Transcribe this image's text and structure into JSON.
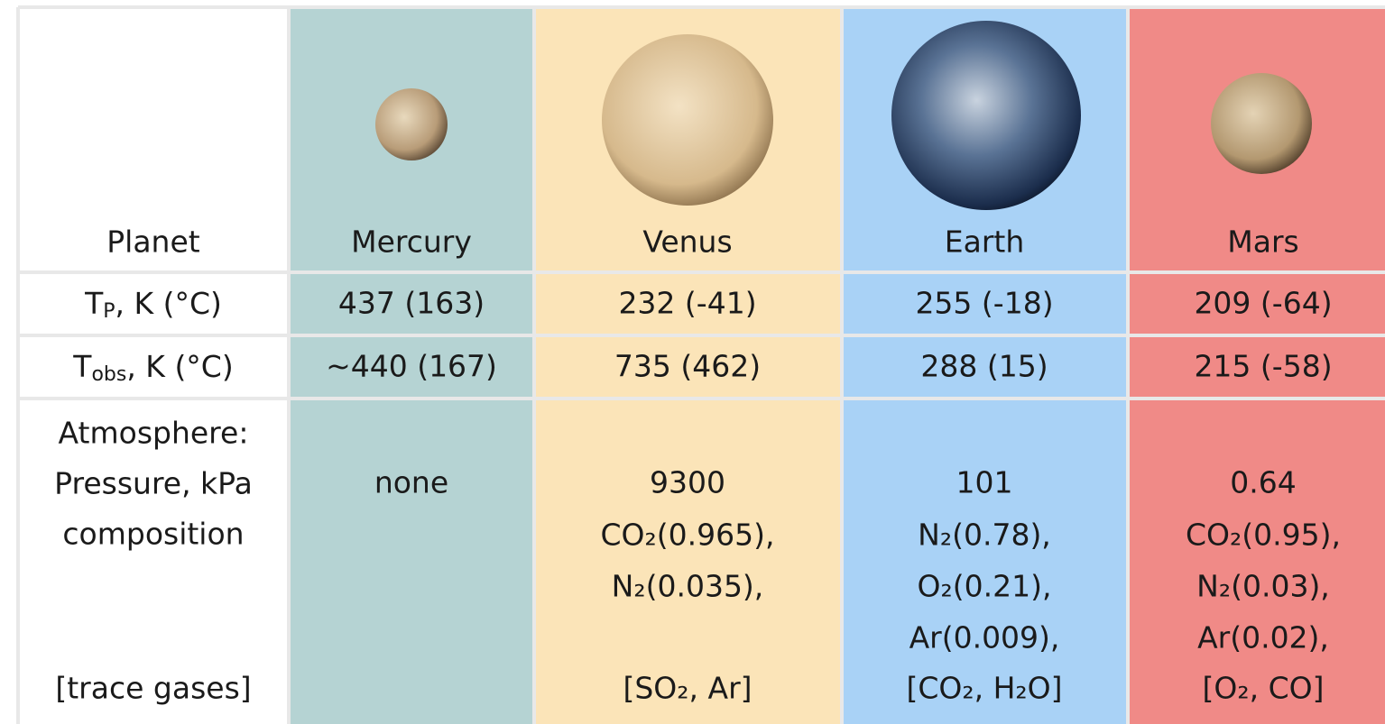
{
  "table": {
    "header": {
      "label": "Planet",
      "planets": [
        "Mercury",
        "Venus",
        "Earth",
        "Mars"
      ]
    },
    "temperature_rows": [
      {
        "label": {
          "base": "T",
          "sub": "P",
          "rest": ", K (°C)"
        },
        "cells": [
          "437 (163)",
          "232 (-41)",
          "255 (-18)",
          "209 (-64)"
        ]
      },
      {
        "label": {
          "base": "T",
          "sub": "obs",
          "rest": ", K (°C)"
        },
        "cells": [
          "~440 (167)",
          "735 (462)",
          "288 (15)",
          "215 (-58)"
        ]
      }
    ],
    "atmosphere": {
      "label": {
        "lines": [
          "Atmosphere:",
          "Pressure, kPa",
          "composition"
        ],
        "trace": "[trace gases]"
      },
      "cells": [
        {
          "pressure": "none"
        },
        {
          "pressure": "9300",
          "composition": [
            "CO₂(0.965),",
            "N₂(0.035),"
          ],
          "trace": "[SO₂, Ar]"
        },
        {
          "pressure": "101",
          "composition": [
            "N₂(0.78),",
            "O₂(0.21),",
            "Ar(0.009),"
          ],
          "trace": "[CO₂, H₂O]"
        },
        {
          "pressure": "0.64",
          "composition": [
            "CO₂(0.95),",
            "N₂(0.03),",
            "Ar(0.02),"
          ],
          "trace": "[O₂, CO]"
        }
      ]
    }
  }
}
